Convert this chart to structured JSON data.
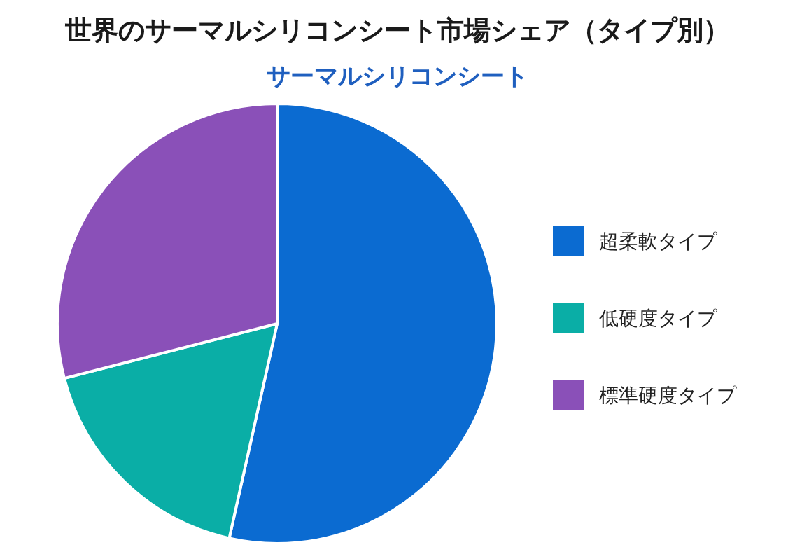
{
  "chart_data": {
    "type": "pie",
    "title": "世界のサーマルシリコンシート市場シェア（タイプ別）",
    "subtitle": "サーマルシリコンシート",
    "categories": [
      "超柔軟タイプ",
      "低硬度タイプ",
      "標準硬度タイプ"
    ],
    "values": [
      53.5,
      17.5,
      29
    ],
    "colors": [
      "#0b6bd1",
      "#0aaea6",
      "#8a50b8"
    ],
    "legend": "right"
  }
}
